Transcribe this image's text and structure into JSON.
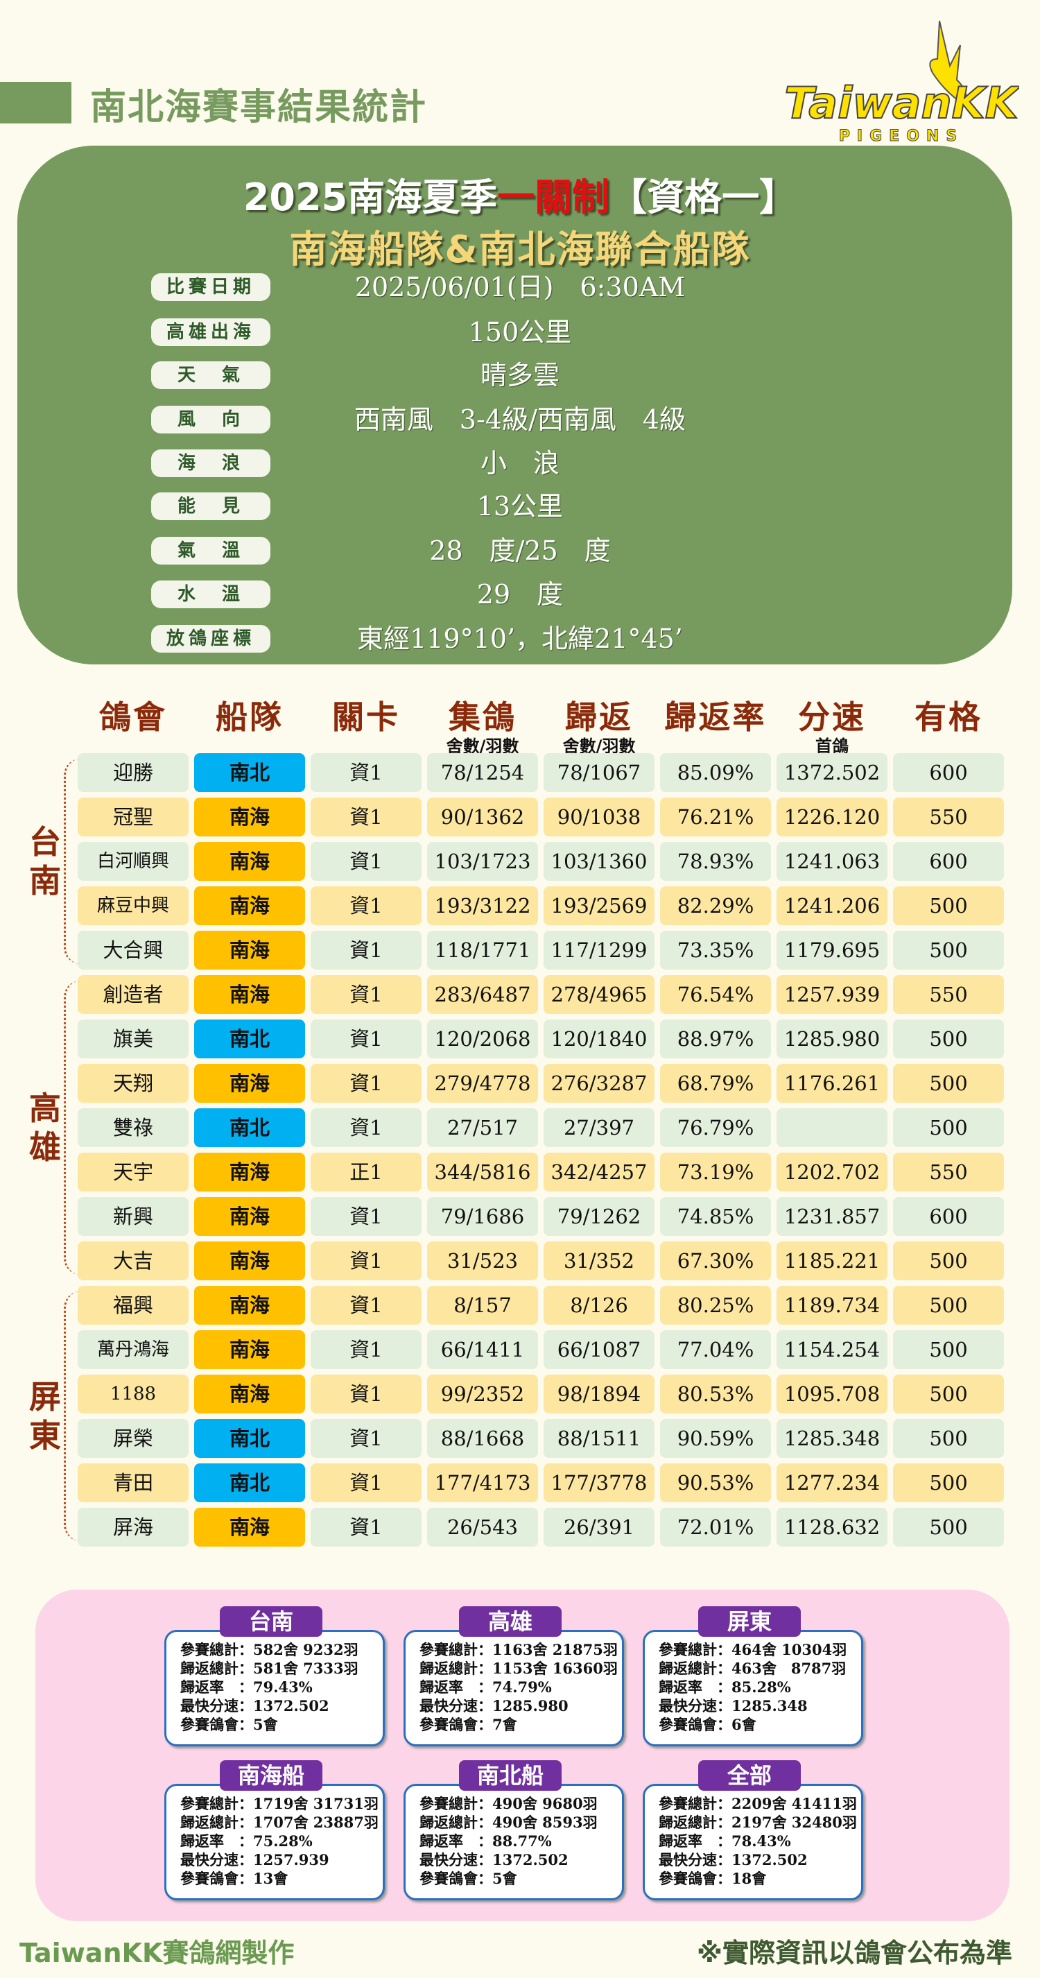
{
  "header": {
    "title": "南北海賽事結果統計",
    "logo_text": "TaiwanKK",
    "logo_sub": "PIGEONS"
  },
  "race": {
    "title_a": "2025南海夏季",
    "title_red": "一關制",
    "title_b": "【資格一】",
    "subtitle": "南海船隊&南北海聯合船隊",
    "info": [
      {
        "label": "比賽日期",
        "value": "2025/06/01(日)　6:30AM"
      },
      {
        "label": "高雄出海",
        "value": "150公里"
      },
      {
        "label": "天　氣",
        "value": "晴多雲"
      },
      {
        "label": "風　向",
        "value": "西南風　3-4級/西南風　4級"
      },
      {
        "label": "海　浪",
        "value": "小　浪"
      },
      {
        "label": "能　見",
        "value": "13公里"
      },
      {
        "label": "氣　溫",
        "value": "28　度/25　度"
      },
      {
        "label": "水　溫",
        "value": "29　度"
      },
      {
        "label": "放鴿座標",
        "value": "東經119°10’，北緯21°45’"
      }
    ]
  },
  "table": {
    "headers": [
      "鴿會",
      "船隊",
      "關卡",
      "集鴿",
      "歸返",
      "歸返率",
      "分速",
      "有格"
    ],
    "subheaders": [
      "",
      "",
      "",
      "舍數/羽數",
      "舍數/羽數",
      "",
      "首鴿",
      ""
    ],
    "regions": [
      {
        "name": "台南",
        "from": 0,
        "to": 4
      },
      {
        "name": "高雄",
        "from": 5,
        "to": 11
      },
      {
        "name": "屏東",
        "from": 12,
        "to": 17
      }
    ],
    "team_colors": {
      "南北": "#00b0f0",
      "南海": "#ffc000"
    },
    "rows": [
      {
        "tone": "green",
        "club": "迎勝",
        "team": "南北",
        "stage": "資1",
        "sent": "78/1254",
        "returned": "78/1067",
        "rate": "85.09%",
        "speed": "1372.502",
        "prize": "600"
      },
      {
        "tone": "yellow",
        "club": "冠聖",
        "team": "南海",
        "stage": "資1",
        "sent": "90/1362",
        "returned": "90/1038",
        "rate": "76.21%",
        "speed": "1226.120",
        "prize": "550"
      },
      {
        "tone": "green",
        "club": "白河順興",
        "team": "南海",
        "stage": "資1",
        "sent": "103/1723",
        "returned": "103/1360",
        "rate": "78.93%",
        "speed": "1241.063",
        "prize": "600"
      },
      {
        "tone": "yellow",
        "club": "麻豆中興",
        "team": "南海",
        "stage": "資1",
        "sent": "193/3122",
        "returned": "193/2569",
        "rate": "82.29%",
        "speed": "1241.206",
        "prize": "500"
      },
      {
        "tone": "green",
        "club": "大合興",
        "team": "南海",
        "stage": "資1",
        "sent": "118/1771",
        "returned": "117/1299",
        "rate": "73.35%",
        "speed": "1179.695",
        "prize": "500"
      },
      {
        "tone": "yellow",
        "club": "創造者",
        "team": "南海",
        "stage": "資1",
        "sent": "283/6487",
        "returned": "278/4965",
        "rate": "76.54%",
        "speed": "1257.939",
        "prize": "550"
      },
      {
        "tone": "green",
        "club": "旗美",
        "team": "南北",
        "stage": "資1",
        "sent": "120/2068",
        "returned": "120/1840",
        "rate": "88.97%",
        "speed": "1285.980",
        "prize": "500"
      },
      {
        "tone": "yellow",
        "club": "天翔",
        "team": "南海",
        "stage": "資1",
        "sent": "279/4778",
        "returned": "276/3287",
        "rate": "68.79%",
        "speed": "1176.261",
        "prize": "500"
      },
      {
        "tone": "green",
        "club": "雙祿",
        "team": "南北",
        "stage": "資1",
        "sent": "27/517",
        "returned": "27/397",
        "rate": "76.79%",
        "speed": "",
        "prize": "500"
      },
      {
        "tone": "yellow",
        "club": "天宇",
        "team": "南海",
        "stage": "正1",
        "sent": "344/5816",
        "returned": "342/4257",
        "rate": "73.19%",
        "speed": "1202.702",
        "prize": "550"
      },
      {
        "tone": "green",
        "club": "新興",
        "team": "南海",
        "stage": "資1",
        "sent": "79/1686",
        "returned": "79/1262",
        "rate": "74.85%",
        "speed": "1231.857",
        "prize": "600"
      },
      {
        "tone": "yellow",
        "club": "大吉",
        "team": "南海",
        "stage": "資1",
        "sent": "31/523",
        "returned": "31/352",
        "rate": "67.30%",
        "speed": "1185.221",
        "prize": "500"
      },
      {
        "tone": "yellow",
        "club": "福興",
        "team": "南海",
        "stage": "資1",
        "sent": "8/157",
        "returned": "8/126",
        "rate": "80.25%",
        "speed": "1189.734",
        "prize": "500"
      },
      {
        "tone": "green",
        "club": "萬丹鴻海",
        "team": "南海",
        "stage": "資1",
        "sent": "66/1411",
        "returned": "66/1087",
        "rate": "77.04%",
        "speed": "1154.254",
        "prize": "500"
      },
      {
        "tone": "yellow",
        "club": "1188",
        "team": "南海",
        "stage": "資1",
        "sent": "99/2352",
        "returned": "98/1894",
        "rate": "80.53%",
        "speed": "1095.708",
        "prize": "500"
      },
      {
        "tone": "green",
        "club": "屏榮",
        "team": "南北",
        "stage": "資1",
        "sent": "88/1668",
        "returned": "88/1511",
        "rate": "90.59%",
        "speed": "1285.348",
        "prize": "500"
      },
      {
        "tone": "yellow",
        "club": "青田",
        "team": "南北",
        "stage": "資1",
        "sent": "177/4173",
        "returned": "177/3778",
        "rate": "90.53%",
        "speed": "1277.234",
        "prize": "500"
      },
      {
        "tone": "green",
        "club": "屏海",
        "team": "南海",
        "stage": "資1",
        "sent": "26/543",
        "returned": "26/391",
        "rate": "72.01%",
        "speed": "1128.632",
        "prize": "500"
      }
    ]
  },
  "summary": [
    {
      "title": "台南",
      "lines": [
        "參賽總計：582舍 9232羽",
        "歸返總計：581舍 7333羽",
        "歸返率　：79.43%",
        "最快分速：1372.502",
        "參賽鴿會：5會"
      ]
    },
    {
      "title": "高雄",
      "lines": [
        "參賽總計：1163舍 21875羽",
        "歸返總計：1153舍 16360羽",
        "歸返率　：74.79%",
        "最快分速：1285.980",
        "參賽鴿會：7會"
      ]
    },
    {
      "title": "屏東",
      "lines": [
        "參賽總計：464舍 10304羽",
        "歸返總計：463舍　8787羽",
        "歸返率　：85.28%",
        "最快分速：1285.348",
        "參賽鴿會：6會"
      ]
    },
    {
      "title": "南海船",
      "lines": [
        "參賽總計：1719舍 31731羽",
        "歸返總計：1707舍 23887羽",
        "歸返率　：75.28%",
        "最快分速：1257.939",
        "參賽鴿會：13會"
      ]
    },
    {
      "title": "南北船",
      "lines": [
        "參賽總計：490舍 9680羽",
        "歸返總計：490舍 8593羽",
        "歸返率　：88.77%",
        "最快分速：1372.502",
        "參賽鴿會：5會"
      ]
    },
    {
      "title": "全部",
      "lines": [
        "參賽總計：2209舍 41411羽",
        "歸返總計：2197舍 32480羽",
        "歸返率　：78.43%",
        "最快分速：1372.502",
        "參賽鴿會：18會"
      ]
    }
  ],
  "footer": {
    "left": "TaiwanKK賽鴿網製作",
    "right": "※實際資訊以鴿會公布為準"
  }
}
